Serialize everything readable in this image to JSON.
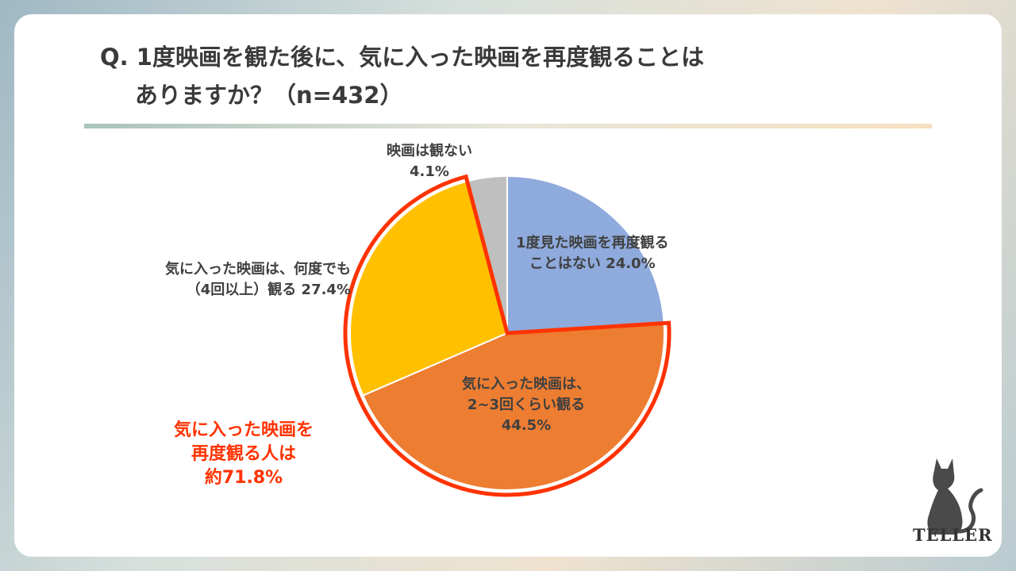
{
  "title": {
    "line1": "Q. 1度映画を観た後に、気に入った映画を再度観ることは",
    "line2": "ありますか？（n=432）"
  },
  "chart_data": {
    "type": "pie",
    "n": 432,
    "slices": [
      {
        "label": "1度見た映画を再度観ることはない",
        "value": 24.0,
        "color": "#8faadc"
      },
      {
        "label": "気に入った映画は、2~3回くらい観る",
        "value": 44.5,
        "color": "#ed7d31"
      },
      {
        "label": "気に入った映画は、何度でも（4回以上）観る",
        "value": 27.4,
        "color": "#ffc000"
      },
      {
        "label": "映画は観ない",
        "value": 4.1,
        "color": "#bfbfbf"
      }
    ],
    "highlight_color": "#ff3300"
  },
  "labels": {
    "never": {
      "line1": "1度見た映画を再度観る",
      "line2": "ことはない 24.0%"
    },
    "twice": {
      "line1": "気に入った映画は、",
      "line2": "2~3回くらい観る",
      "line3": "44.5%"
    },
    "many": {
      "line1": "気に入った映画は、何度でも",
      "line2": "（4回以上）観る 27.4%"
    },
    "none": {
      "line1": "映画は観ない",
      "line2": "4.1%"
    }
  },
  "callout": {
    "line1": "気に入った映画を",
    "line2": "再度観る人は",
    "line3": "約71.8%"
  },
  "logo": {
    "text": "TELLER",
    "icon": "cat-icon"
  }
}
